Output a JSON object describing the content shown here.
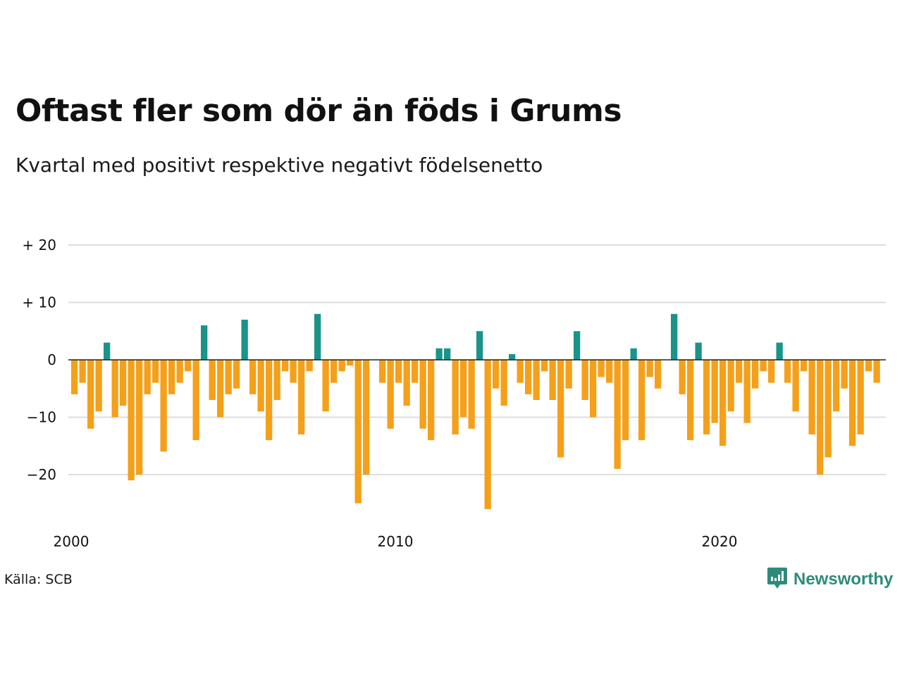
{
  "title": "Oftast fler som dör än föds i Grums",
  "subtitle": "Kvartal med positivt respektive negativt födelsenetto",
  "source": "Källa: SCB",
  "brand": {
    "name": "Newsworthy",
    "icon": "newsworthy-logo-icon"
  },
  "colors": {
    "positive": "#1a9488",
    "negative": "#f5a01a",
    "grid": "#dddddd",
    "zero": "#222222"
  },
  "chart_data": {
    "type": "bar",
    "x_start": "2000 Q1",
    "frequency": "quarterly",
    "y_ticks": [
      {
        "value": 20,
        "label": "+ 20"
      },
      {
        "value": 10,
        "label": "+ 10"
      },
      {
        "value": 0,
        "label": "0"
      },
      {
        "value": -10,
        "label": "−10"
      },
      {
        "value": -20,
        "label": "−20"
      }
    ],
    "x_ticks": [
      "2000",
      "2010",
      "2020"
    ],
    "ylim": [
      -27,
      20
    ],
    "grid": true,
    "values": [
      -6,
      -4,
      -12,
      -9,
      3,
      -10,
      -8,
      -21,
      -20,
      -6,
      -4,
      -16,
      -6,
      -4,
      -2,
      -14,
      6,
      -7,
      -10,
      -6,
      -5,
      7,
      -6,
      -9,
      -14,
      -7,
      -2,
      -4,
      -13,
      -2,
      8,
      -9,
      -4,
      -2,
      -1,
      -25,
      -20,
      0,
      -4,
      -12,
      -4,
      -8,
      -4,
      -12,
      -14,
      2,
      2,
      -13,
      -10,
      -12,
      5,
      -26,
      -5,
      -8,
      1,
      -4,
      -6,
      -7,
      -2,
      -7,
      -17,
      -5,
      5,
      -7,
      -10,
      -3,
      -4,
      -19,
      -14,
      2,
      -14,
      -3,
      -5,
      0,
      8,
      -6,
      -14,
      3,
      -13,
      -11,
      -15,
      -9,
      -4,
      -11,
      -5,
      -2,
      -4,
      3,
      -4,
      -9,
      -2,
      -13,
      -20,
      -17,
      -9,
      -5,
      -15,
      -13,
      -2,
      -4
    ]
  }
}
